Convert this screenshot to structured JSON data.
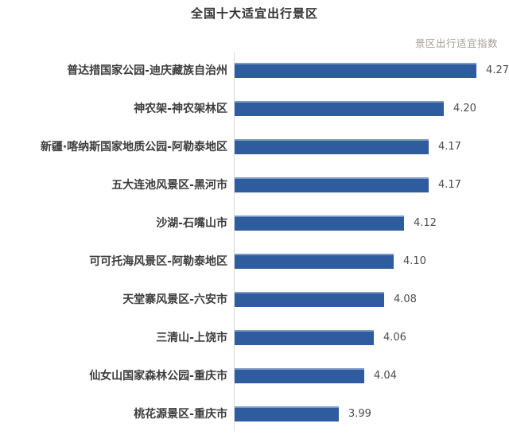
{
  "title": "全国十大适宜出行景区",
  "legend": "景区出行适宜指数",
  "colors": {
    "bar": "#2e5c9e",
    "bar_highlight": "#7a9ac7",
    "axis_line": "#d9d9d9",
    "title_text": "#333333",
    "category_text": "#3d3d3d",
    "value_text": "#4d4d4d",
    "legend_text": "#a6a099"
  },
  "chart_data": {
    "type": "bar",
    "orientation": "horizontal",
    "title": "全国十大适宜出行景区",
    "legend_entries": [
      "景区出行适宜指数"
    ],
    "legend_position": "top-right",
    "grid": false,
    "xlabel": "",
    "ylabel": "",
    "xlim": [
      3.78,
      4.35
    ],
    "categories": [
      "普达措国家公园-迪庆藏族自治州",
      "神农架-神农架林区",
      "新疆·喀纳斯国家地质公园-阿勒泰地区",
      "五大连池风景区-黑河市",
      "沙湖-石嘴山市",
      "可可托海风景区-阿勒泰地区",
      "天堂寨风景区-六安市",
      "三清山-上饶市",
      "仙女山国家森林公园-重庆市",
      "桃花源景区-重庆市"
    ],
    "values": [
      4.27,
      4.2,
      4.17,
      4.17,
      4.12,
      4.1,
      4.08,
      4.06,
      4.04,
      3.99
    ],
    "value_labels": [
      "4.27",
      "4.20",
      "4.17",
      "4.17",
      "4.12",
      "4.10",
      "4.08",
      "4.06",
      "4.04",
      "3.99"
    ]
  }
}
